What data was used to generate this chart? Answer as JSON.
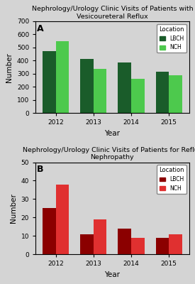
{
  "chart_A": {
    "title": "Nephrology/Urology Clinic Visits of Patients with\nVesicoureteral Reflux",
    "xlabel": "Year",
    "ylabel": "Number",
    "years": [
      2012,
      2013,
      2014,
      2015
    ],
    "LBCH": [
      470,
      415,
      385,
      315
    ],
    "NCH": [
      550,
      340,
      260,
      290
    ],
    "ylim": [
      0,
      700
    ],
    "yticks": [
      0,
      100,
      200,
      300,
      400,
      500,
      600,
      700
    ],
    "color_LBCH": "#1a5c2a",
    "color_NCH": "#4dc94d",
    "bg_color": "#d4d4d4",
    "label": "A"
  },
  "chart_B": {
    "title": "Nephrology/Urology Clinic Visits of Patients for Reflux\nNephropathy",
    "xlabel": "Year",
    "ylabel": "Number",
    "years": [
      2012,
      2013,
      2014,
      2015
    ],
    "LBCH": [
      25,
      11,
      14,
      9
    ],
    "NCH": [
      38,
      19,
      9,
      11
    ],
    "ylim": [
      0,
      50
    ],
    "yticks": [
      0,
      10,
      20,
      30,
      40,
      50
    ],
    "color_LBCH": "#8b0000",
    "color_NCH": "#e03030",
    "bg_color": "#d4d4d4",
    "label": "B"
  },
  "bar_width": 0.35,
  "legend_title": "Location",
  "fig_bg": "#d4d4d4"
}
